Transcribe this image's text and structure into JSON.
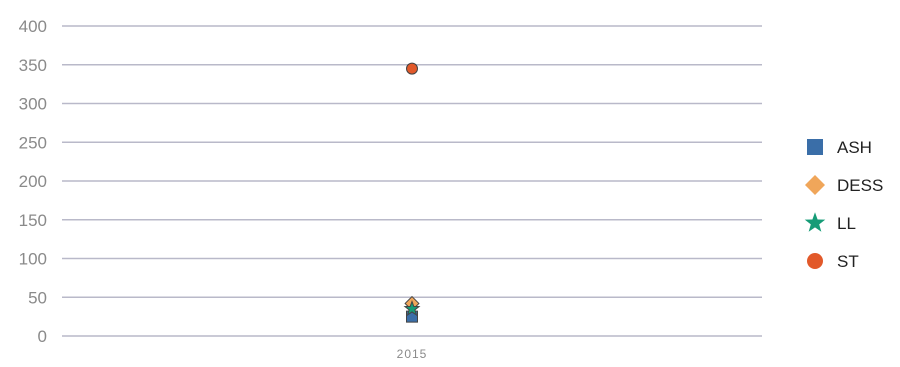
{
  "chart_data": {
    "type": "scatter",
    "categories": [
      "2015"
    ],
    "y_ticks": [
      "0",
      "50",
      "100",
      "150",
      "200",
      "250",
      "300",
      "350",
      "400"
    ],
    "ylim": [
      0,
      400
    ],
    "grid": true,
    "legend_position": "right",
    "title": "",
    "xlabel": "",
    "ylabel": "",
    "series": [
      {
        "name": "ASH",
        "marker": "square",
        "color": "#3a6ea8",
        "values": [
          25
        ]
      },
      {
        "name": "DESS",
        "marker": "diamond",
        "color": "#f0a65a",
        "values": [
          42
        ]
      },
      {
        "name": "LL",
        "marker": "star",
        "color": "#169c77",
        "values": [
          35
        ]
      },
      {
        "name": "ST",
        "marker": "circle",
        "color": "#e2592a",
        "values": [
          345
        ]
      }
    ]
  }
}
